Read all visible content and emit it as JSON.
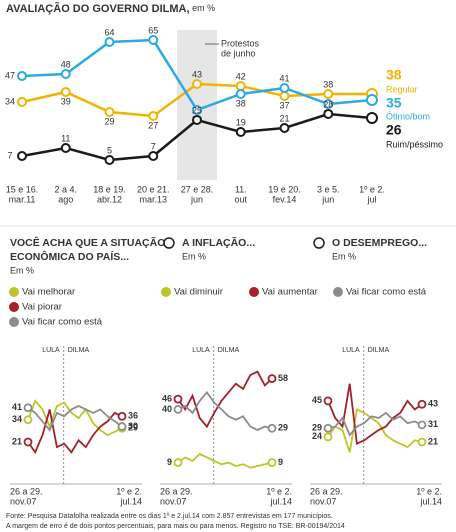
{
  "chart_data": [
    {
      "type": "line",
      "title": "AVALIAÇÃO DO GOVERNO DILMA,",
      "subtitle": "em %",
      "annotation": [
        "Protestos",
        "de junho"
      ],
      "categories": [
        [
          "15 e 16.",
          "mar.11"
        ],
        [
          "2 a 4.",
          "ago"
        ],
        [
          "18 e 19.",
          "abr.12"
        ],
        [
          "20 e 21.",
          "mar.13"
        ],
        [
          "27 e 28.",
          "jun"
        ],
        [
          "11.",
          "out"
        ],
        [
          "19 e 20.",
          "fev.14"
        ],
        [
          "3 e 5.",
          "jun"
        ],
        [
          "1º e 2.",
          "jul"
        ]
      ],
      "ylim": [
        0,
        70
      ],
      "series": [
        {
          "name": "Regular",
          "color": "#f0b400",
          "values": [
            34,
            39,
            29,
            27,
            43,
            42,
            37,
            38,
            38
          ]
        },
        {
          "name": "Ótimo/bom",
          "color": "#29abe2",
          "values": [
            47,
            48,
            64,
            65,
            30,
            38,
            41,
            33,
            35
          ]
        },
        {
          "name": "Ruim/péssimo",
          "color": "#1a1a1a",
          "values": [
            7,
            11,
            5,
            7,
            25,
            19,
            21,
            28,
            26
          ]
        }
      ]
    },
    {
      "type": "line",
      "title": [
        "VOCÊ ACHA QUE A SITUAÇÃO",
        "ECONÔMICA DO PAÍS..."
      ],
      "subtitle": "Em %",
      "eras": [
        "LULA",
        "DILMA"
      ],
      "categories": [
        [
          "26 a 29.",
          "nov.07"
        ],
        null,
        null,
        null,
        null,
        null,
        null,
        null,
        null,
        null,
        null,
        null,
        null,
        [
          "1º e 2.",
          "jul.14"
        ]
      ],
      "ylim": [
        0,
        70
      ],
      "series": [
        {
          "name": "Vai melhorar",
          "color": "#bcc52a",
          "values": [
            34,
            45,
            40,
            30,
            42,
            44,
            38,
            35,
            40,
            32,
            28,
            25,
            27,
            29
          ]
        },
        {
          "name": "Vai piorar",
          "color": "#a3202c",
          "values": [
            21,
            15,
            25,
            40,
            18,
            20,
            15,
            22,
            18,
            25,
            30,
            33,
            38,
            36
          ]
        },
        {
          "name": "Vai ficar como está",
          "color": "#8c8c8c",
          "values": [
            41,
            38,
            33,
            28,
            38,
            36,
            40,
            42,
            40,
            38,
            40,
            36,
            33,
            30
          ]
        }
      ]
    },
    {
      "type": "line",
      "title": [
        "A INFLAÇÃO..."
      ],
      "subtitle": "Em %",
      "eras": [
        "LULA",
        "DILMA"
      ],
      "categories": [
        [
          "26 a 29.",
          "nov.07"
        ],
        null,
        null,
        null,
        null,
        null,
        null,
        null,
        null,
        null,
        null,
        null,
        null,
        [
          "1º e 2.",
          "jul.14"
        ]
      ],
      "ylim": [
        0,
        70
      ],
      "series": [
        {
          "name": "Vai diminuir",
          "color": "#bcc52a",
          "values": [
            9,
            12,
            10,
            14,
            12,
            10,
            8,
            9,
            7,
            8,
            6,
            7,
            8,
            9
          ]
        },
        {
          "name": "Vai aumentar",
          "color": "#a3202c",
          "values": [
            46,
            40,
            48,
            35,
            30,
            38,
            45,
            50,
            55,
            52,
            60,
            62,
            54,
            58
          ]
        },
        {
          "name": "Vai ficar como está",
          "color": "#8c8c8c",
          "values": [
            40,
            42,
            38,
            45,
            50,
            44,
            40,
            36,
            34,
            36,
            30,
            28,
            30,
            29
          ]
        }
      ]
    },
    {
      "type": "line",
      "title": [
        "O DESEMPREGO..."
      ],
      "subtitle": "Em %",
      "eras": [
        "LULA",
        "DILMA"
      ],
      "categories": [
        [
          "26 a 29.",
          "nov.07"
        ],
        null,
        null,
        null,
        null,
        null,
        null,
        null,
        null,
        null,
        null,
        null,
        null,
        [
          "1º e 2.",
          "jul.14"
        ]
      ],
      "ylim": [
        0,
        70
      ],
      "series": [
        {
          "color": "#bcc52a",
          "values": [
            24,
            30,
            28,
            15,
            40,
            38,
            35,
            32,
            25,
            22,
            20,
            18,
            22,
            21
          ]
        },
        {
          "color": "#a3202c",
          "values": [
            45,
            35,
            30,
            55,
            20,
            22,
            25,
            28,
            30,
            35,
            38,
            45,
            40,
            43
          ]
        },
        {
          "color": "#8c8c8c",
          "values": [
            29,
            30,
            35,
            25,
            30,
            32,
            36,
            35,
            38,
            34,
            36,
            32,
            33,
            31
          ]
        }
      ]
    }
  ],
  "notes": [
    "Fonte: Pesquisa Datafolha realizada entre os dias 1º e 2.jul.14 com 2.857 entrevistas em 177 municípios.",
    "A margem de erro é de dois pontos percentuais, para mais ou para menos. Registro no TSE: BR-00194/2014"
  ]
}
